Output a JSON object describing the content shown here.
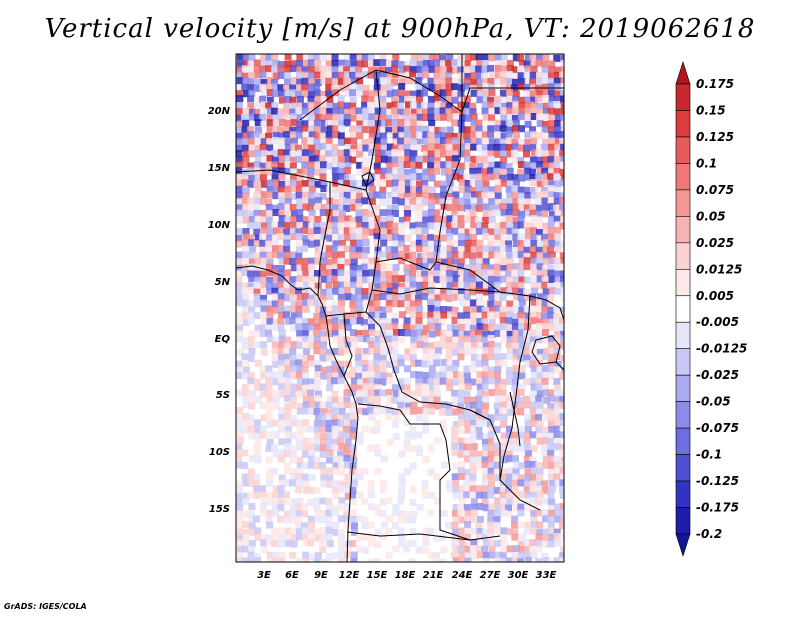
{
  "title": "Vertical velocity [m/s] at 900hPa, VT: 2019062618",
  "credit": "GrADS: IGES/COLA",
  "map": {
    "lat_labels": [
      "20N",
      "15N",
      "10N",
      "5N",
      "EQ",
      "5S",
      "10S",
      "15S"
    ],
    "lon_labels": [
      "3E",
      "6E",
      "9E",
      "12E",
      "15E",
      "18E",
      "21E",
      "24E",
      "27E",
      "30E",
      "33E"
    ]
  },
  "colorbar": {
    "levels": [
      "0.175",
      "0.15",
      "0.125",
      "0.1",
      "0.075",
      "0.05",
      "0.025",
      "0.0125",
      "0.005",
      "-0.005",
      "-0.0125",
      "-0.025",
      "-0.05",
      "-0.075",
      "-0.1",
      "-0.125",
      "-0.175",
      "-0.2"
    ],
    "colors": [
      "#b4141e",
      "#c8282d",
      "#dc3c3c",
      "#e65a5a",
      "#f07878",
      "#f59696",
      "#f8b4b4",
      "#fbd2d2",
      "#fde8e8",
      "#ffffff",
      "#e6e6fa",
      "#c8c8f5",
      "#aaaaf0",
      "#8c8ceb",
      "#6e6ee1",
      "#5050d2",
      "#3232c3",
      "#1e1eaa",
      "#14149b"
    ]
  }
}
